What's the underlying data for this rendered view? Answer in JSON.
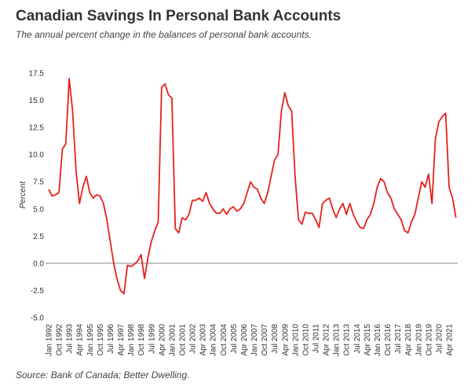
{
  "chart_data": {
    "type": "line",
    "title": "Canadian Savings In Personal Bank Accounts",
    "subtitle": "The annual percent change in the balances of personal bank accounts.",
    "y_label": "Percent",
    "source": "Source: Bank of Canada; Better Dwelling.",
    "categories": [
      "Jan 1992",
      null,
      null,
      "Oct 1992",
      null,
      null,
      "Jul 1993",
      null,
      null,
      "Apr 1994",
      null,
      null,
      "Jan 1995",
      null,
      null,
      "Oct 1995",
      null,
      null,
      "Jul 1996",
      null,
      null,
      "Apr 1997",
      null,
      null,
      "Jan 1998",
      null,
      null,
      "Oct 1998",
      null,
      null,
      "Jul 1999",
      null,
      null,
      "Apr 2000",
      null,
      null,
      "Jan 2001",
      null,
      null,
      "Oct 2001",
      null,
      null,
      "Jul 2002",
      null,
      null,
      "Apr 2003",
      null,
      null,
      "Jan 2004",
      null,
      null,
      "Oct 2004",
      null,
      null,
      "Jul 2005",
      null,
      null,
      "Apr 2006",
      null,
      null,
      "Jan 2007",
      null,
      null,
      "Oct 2007",
      null,
      null,
      "Jul 2008",
      null,
      null,
      "Apr 2009",
      null,
      null,
      "Jan 2010",
      null,
      null,
      "Oct 2010",
      null,
      null,
      "Jul 2011",
      null,
      null,
      "Apr 2012",
      null,
      null,
      "Jan 2013",
      null,
      null,
      "Oct 2013",
      null,
      null,
      "Jul 2014",
      null,
      null,
      "Apr 2015",
      null,
      null,
      "Jan 2016",
      null,
      null,
      "Oct 2016",
      null,
      null,
      "Jul 2017",
      null,
      null,
      "Apr 2018",
      null,
      null,
      "Jan 2019",
      null,
      null,
      "Oct 2019",
      null,
      null,
      "Jul 2020",
      null,
      null,
      "Apr 2021",
      null,
      null
    ],
    "series": [
      {
        "name": "Percent change",
        "color": "#e8201a",
        "values": [
          6.8,
          6.2,
          6.3,
          6.5,
          10.5,
          11.0,
          17.0,
          14.0,
          8.5,
          5.5,
          7.0,
          8.0,
          6.5,
          6.0,
          6.3,
          6.2,
          5.5,
          4.0,
          2.0,
          0.0,
          -1.5,
          -2.5,
          -2.8,
          -0.2,
          -0.3,
          -0.1,
          0.2,
          0.8,
          -1.4,
          0.5,
          2.0,
          3.0,
          3.8,
          16.2,
          16.5,
          15.5,
          15.2,
          3.2,
          2.8,
          4.2,
          4.0,
          4.5,
          5.8,
          5.8,
          6.0,
          5.7,
          6.5,
          5.5,
          5.0,
          4.6,
          4.6,
          5.0,
          4.5,
          5.0,
          5.2,
          4.8,
          5.0,
          5.5,
          6.5,
          7.5,
          7.0,
          6.8,
          6.0,
          5.5,
          6.5,
          8.0,
          9.5,
          10.0,
          14.0,
          15.7,
          14.5,
          14.0,
          8.0,
          4.0,
          3.6,
          4.7,
          4.6,
          4.6,
          4.0,
          3.3,
          5.5,
          5.8,
          6.0,
          5.0,
          4.2,
          5.0,
          5.5,
          4.5,
          5.5,
          4.5,
          3.8,
          3.3,
          3.2,
          4.0,
          4.5,
          5.5,
          7.0,
          7.8,
          7.5,
          6.5,
          6.0,
          5.0,
          4.5,
          4.0,
          3.0,
          2.8,
          3.8,
          4.5,
          6.0,
          7.5,
          7.0,
          8.2,
          5.5,
          11.5,
          13.0,
          13.5,
          13.8,
          7.0,
          6.0,
          4.2
        ]
      }
    ],
    "ylim": [
      -5,
      17.5
    ],
    "yticks": [
      {
        "value": -5,
        "label": "-5.0"
      },
      -2.5,
      {
        "value": 0,
        "label": "0.0"
      },
      2.5,
      {
        "value": 5,
        "label": "5.0"
      },
      7.5,
      {
        "value": 10,
        "label": "10.0"
      },
      12.5,
      {
        "value": 15,
        "label": "15.0"
      },
      17.5
    ],
    "grid": false
  }
}
